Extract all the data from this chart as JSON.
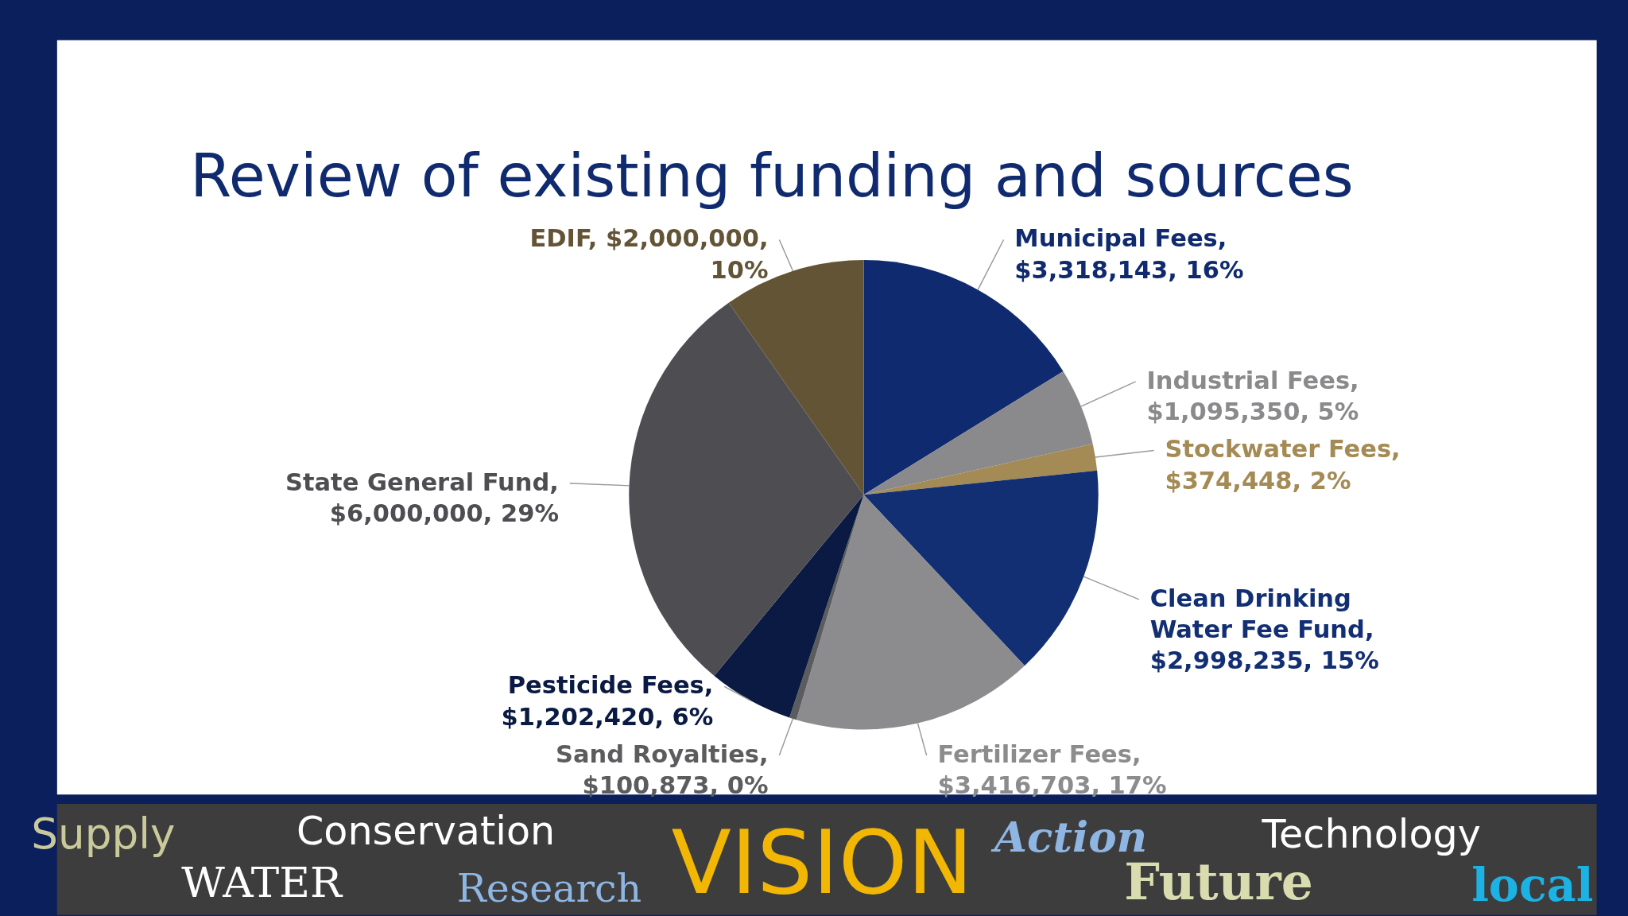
{
  "chart_data": {
    "type": "pie",
    "title": "Review of existing funding and sources",
    "categories": [
      "Municipal Fees",
      "Industrial Fees",
      "Stockwater Fees",
      "Clean Drinking Water Fee Fund",
      "Fertilizer Fees",
      "Sand Royalties",
      "Pesticide Fees",
      "State General Fund",
      "EDIF"
    ],
    "values": [
      3318143,
      1095350,
      374448,
      2998235,
      3416703,
      100873,
      1202420,
      6000000,
      2000000
    ],
    "value_labels": [
      ", $3,318,143, 16%",
      ", $1,095,350, 5%",
      ", $374,448, 2%",
      ", $2,998,235, 15%",
      ", $3,416,703, 17%",
      ", $100,873, 0%",
      ", $1,202,420, 6%",
      ", $6,000,000, 29%",
      ", $2,000,000, 10%"
    ],
    "colors": [
      "#0f2a6e",
      "#8a8a8c",
      "#a48a55",
      "#132f74",
      "#8c8c8e",
      "#5c5c5e",
      "#0a1a42",
      "#4e4e52",
      "#635436"
    ],
    "legend": false,
    "annotations": [
      "Supply",
      "Conservation",
      "WATER",
      "Research",
      "VISION",
      "Action",
      "Future",
      "Technology",
      "local"
    ]
  }
}
